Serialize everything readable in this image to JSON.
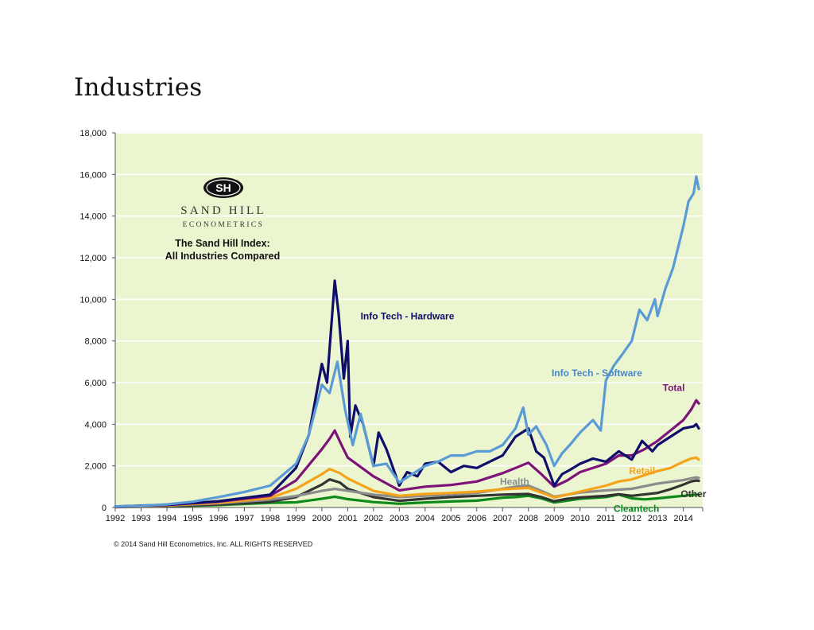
{
  "page": {
    "title": "Industries",
    "copyright": "© 2014 Sand Hill Econometrics, Inc. ALL RIGHTS RESERVED"
  },
  "logo": {
    "monogram": "SH",
    "line1": "SAND HILL",
    "line2": "ECONOMETRICS"
  },
  "chart_data": {
    "type": "line",
    "title": "The Sand Hill Index:",
    "subtitle": "All Industries Compared",
    "xlabel": "",
    "ylabel": "",
    "xlim": [
      1992,
      2014.75
    ],
    "ylim": [
      0,
      18000
    ],
    "yticks": [
      0,
      2000,
      4000,
      6000,
      8000,
      10000,
      12000,
      14000,
      16000,
      18000
    ],
    "ytick_labels": [
      "0",
      "2,000",
      "4,000",
      "6,000",
      "8,000",
      "10,000",
      "12,000",
      "14,000",
      "16,000",
      "18,000"
    ],
    "xticks": [
      1992,
      1993,
      1994,
      1995,
      1996,
      1997,
      1998,
      1999,
      2000,
      2001,
      2002,
      2003,
      2004,
      2005,
      2006,
      2007,
      2008,
      2009,
      2010,
      2011,
      2012,
      2013,
      2014
    ],
    "xtick_labels": [
      "1992",
      "1993",
      "1994",
      "1995",
      "1996",
      "1997",
      "1998",
      "1999",
      "2000",
      "2001",
      "2002",
      "2003",
      "2004",
      "2005",
      "2006",
      "2007",
      "2008",
      "2009",
      "2010",
      "2011",
      "2012",
      "2013",
      "2014"
    ],
    "grid": true,
    "plot_background": "#ebf5cf",
    "series": [
      {
        "name": "Cleantech",
        "color": "#0d8a1a",
        "points": [
          [
            1992,
            20
          ],
          [
            1994,
            60
          ],
          [
            1996,
            120
          ],
          [
            1998,
            220
          ],
          [
            1999,
            250
          ],
          [
            2000,
            420
          ],
          [
            2000.5,
            520
          ],
          [
            2001,
            400
          ],
          [
            2002,
            260
          ],
          [
            2003,
            180
          ],
          [
            2004,
            240
          ],
          [
            2005,
            290
          ],
          [
            2006,
            330
          ],
          [
            2007,
            470
          ],
          [
            2007.5,
            500
          ],
          [
            2008,
            560
          ],
          [
            2008.5,
            440
          ],
          [
            2009,
            240
          ],
          [
            2009.5,
            330
          ],
          [
            2010,
            420
          ],
          [
            2011,
            500
          ],
          [
            2011.5,
            620
          ],
          [
            2012,
            440
          ],
          [
            2012.5,
            390
          ],
          [
            2013,
            440
          ],
          [
            2013.5,
            500
          ],
          [
            2014,
            560
          ],
          [
            2014.5,
            620
          ],
          [
            2014.6,
            610
          ]
        ]
      },
      {
        "name": "Other",
        "color": "#333333",
        "points": [
          [
            1992,
            20
          ],
          [
            1994,
            60
          ],
          [
            1996,
            150
          ],
          [
            1998,
            280
          ],
          [
            1999,
            500
          ],
          [
            2000,
            1100
          ],
          [
            2000.3,
            1350
          ],
          [
            2000.7,
            1200
          ],
          [
            2001,
            900
          ],
          [
            2002,
            500
          ],
          [
            2003,
            320
          ],
          [
            2004,
            420
          ],
          [
            2005,
            500
          ],
          [
            2006,
            560
          ],
          [
            2007,
            620
          ],
          [
            2008,
            650
          ],
          [
            2008.5,
            500
          ],
          [
            2009,
            300
          ],
          [
            2009.5,
            420
          ],
          [
            2010,
            480
          ],
          [
            2011,
            560
          ],
          [
            2011.5,
            640
          ],
          [
            2012,
            560
          ],
          [
            2013,
            700
          ],
          [
            2013.5,
            880
          ],
          [
            2014,
            1100
          ],
          [
            2014.3,
            1250
          ],
          [
            2014.5,
            1300
          ],
          [
            2014.6,
            1280
          ]
        ]
      },
      {
        "name": "Health",
        "color": "#8c8c8c",
        "points": [
          [
            1992,
            30
          ],
          [
            1994,
            90
          ],
          [
            1996,
            200
          ],
          [
            1998,
            380
          ],
          [
            1999,
            550
          ],
          [
            2000,
            800
          ],
          [
            2000.5,
            900
          ],
          [
            2001,
            800
          ],
          [
            2002,
            620
          ],
          [
            2003,
            500
          ],
          [
            2004,
            560
          ],
          [
            2005,
            620
          ],
          [
            2006,
            700
          ],
          [
            2007,
            900
          ],
          [
            2007.5,
            1000
          ],
          [
            2008,
            1050
          ],
          [
            2008.5,
            800
          ],
          [
            2009,
            520
          ],
          [
            2009.5,
            620
          ],
          [
            2010,
            720
          ],
          [
            2011,
            820
          ],
          [
            2012,
            900
          ],
          [
            2013,
            1150
          ],
          [
            2014,
            1320
          ],
          [
            2014.5,
            1450
          ],
          [
            2014.6,
            1420
          ]
        ]
      },
      {
        "name": "Retail",
        "color": "#f5a31a",
        "points": [
          [
            1992,
            30
          ],
          [
            1994,
            100
          ],
          [
            1996,
            230
          ],
          [
            1998,
            460
          ],
          [
            1999,
            900
          ],
          [
            2000,
            1600
          ],
          [
            2000.3,
            1850
          ],
          [
            2000.7,
            1650
          ],
          [
            2001,
            1400
          ],
          [
            2002,
            800
          ],
          [
            2003,
            560
          ],
          [
            2004,
            650
          ],
          [
            2005,
            700
          ],
          [
            2006,
            760
          ],
          [
            2007,
            880
          ],
          [
            2008,
            940
          ],
          [
            2008.5,
            720
          ],
          [
            2009,
            480
          ],
          [
            2009.5,
            620
          ],
          [
            2010,
            760
          ],
          [
            2011,
            1050
          ],
          [
            2011.5,
            1250
          ],
          [
            2012,
            1350
          ],
          [
            2012.5,
            1550
          ],
          [
            2013,
            1750
          ],
          [
            2013.5,
            1900
          ],
          [
            2014,
            2200
          ],
          [
            2014.3,
            2350
          ],
          [
            2014.5,
            2400
          ],
          [
            2014.6,
            2300
          ]
        ]
      },
      {
        "name": "Total",
        "color": "#7d1378",
        "points": [
          [
            1992,
            40
          ],
          [
            1994,
            120
          ],
          [
            1996,
            280
          ],
          [
            1998,
            560
          ],
          [
            1999,
            1300
          ],
          [
            2000,
            2800
          ],
          [
            2000.3,
            3300
          ],
          [
            2000.5,
            3700
          ],
          [
            2000.8,
            2900
          ],
          [
            2001,
            2400
          ],
          [
            2002,
            1500
          ],
          [
            2003,
            820
          ],
          [
            2004,
            1000
          ],
          [
            2005,
            1080
          ],
          [
            2006,
            1250
          ],
          [
            2007,
            1650
          ],
          [
            2007.5,
            1900
          ],
          [
            2008,
            2150
          ],
          [
            2008.5,
            1600
          ],
          [
            2009,
            1000
          ],
          [
            2009.5,
            1300
          ],
          [
            2010,
            1700
          ],
          [
            2011,
            2100
          ],
          [
            2011.5,
            2500
          ],
          [
            2012,
            2500
          ],
          [
            2012.5,
            2800
          ],
          [
            2013,
            3200
          ],
          [
            2013.5,
            3700
          ],
          [
            2014,
            4200
          ],
          [
            2014.3,
            4700
          ],
          [
            2014.5,
            5150
          ],
          [
            2014.6,
            5000
          ]
        ]
      },
      {
        "name": "Info Tech - Hardware",
        "color": "#0f0f6b",
        "points": [
          [
            1992,
            50
          ],
          [
            1994,
            130
          ],
          [
            1996,
            300
          ],
          [
            1998,
            620
          ],
          [
            1999,
            1900
          ],
          [
            1999.5,
            3500
          ],
          [
            2000,
            6900
          ],
          [
            2000.2,
            6000
          ],
          [
            2000.5,
            10900
          ],
          [
            2000.65,
            9300
          ],
          [
            2000.85,
            6200
          ],
          [
            2001,
            8000
          ],
          [
            2001.1,
            3400
          ],
          [
            2001.3,
            4900
          ],
          [
            2001.6,
            4000
          ],
          [
            2002,
            2000
          ],
          [
            2002.2,
            3600
          ],
          [
            2002.5,
            2800
          ],
          [
            2003,
            1050
          ],
          [
            2003.3,
            1700
          ],
          [
            2003.7,
            1500
          ],
          [
            2004,
            2100
          ],
          [
            2004.5,
            2200
          ],
          [
            2005,
            1700
          ],
          [
            2005.5,
            2000
          ],
          [
            2006,
            1900
          ],
          [
            2006.5,
            2200
          ],
          [
            2007,
            2500
          ],
          [
            2007.5,
            3400
          ],
          [
            2008,
            3800
          ],
          [
            2008.3,
            2700
          ],
          [
            2008.6,
            2400
          ],
          [
            2009,
            1050
          ],
          [
            2009.3,
            1600
          ],
          [
            2009.6,
            1800
          ],
          [
            2010,
            2100
          ],
          [
            2010.5,
            2350
          ],
          [
            2011,
            2200
          ],
          [
            2011.5,
            2700
          ],
          [
            2012,
            2300
          ],
          [
            2012.4,
            3200
          ],
          [
            2012.8,
            2700
          ],
          [
            2013,
            3000
          ],
          [
            2013.5,
            3400
          ],
          [
            2014,
            3800
          ],
          [
            2014.4,
            3900
          ],
          [
            2014.5,
            4000
          ],
          [
            2014.6,
            3800
          ]
        ]
      },
      {
        "name": "Info Tech - Software",
        "color": "#5b9bd5",
        "points": [
          [
            1992,
            50
          ],
          [
            1993,
            80
          ],
          [
            1994,
            150
          ],
          [
            1995,
            280
          ],
          [
            1996,
            500
          ],
          [
            1997,
            750
          ],
          [
            1998,
            1050
          ],
          [
            1999,
            2100
          ],
          [
            1999.5,
            3500
          ],
          [
            2000,
            5900
          ],
          [
            2000.3,
            5500
          ],
          [
            2000.6,
            7000
          ],
          [
            2000.9,
            4700
          ],
          [
            2001.2,
            3000
          ],
          [
            2001.5,
            4500
          ],
          [
            2002,
            2000
          ],
          [
            2002.5,
            2100
          ],
          [
            2003,
            1200
          ],
          [
            2003.5,
            1600
          ],
          [
            2004,
            2000
          ],
          [
            2004.5,
            2200
          ],
          [
            2005,
            2500
          ],
          [
            2005.5,
            2500
          ],
          [
            2006,
            2700
          ],
          [
            2006.5,
            2700
          ],
          [
            2007,
            3000
          ],
          [
            2007.5,
            3800
          ],
          [
            2007.8,
            4800
          ],
          [
            2008,
            3500
          ],
          [
            2008.3,
            3900
          ],
          [
            2008.7,
            3000
          ],
          [
            2009,
            2000
          ],
          [
            2009.3,
            2600
          ],
          [
            2009.6,
            3000
          ],
          [
            2010,
            3600
          ],
          [
            2010.5,
            4200
          ],
          [
            2010.8,
            3700
          ],
          [
            2011,
            6100
          ],
          [
            2011.3,
            6800
          ],
          [
            2011.6,
            7300
          ],
          [
            2012,
            8000
          ],
          [
            2012.3,
            9500
          ],
          [
            2012.6,
            9000
          ],
          [
            2012.9,
            10000
          ],
          [
            2013,
            9200
          ],
          [
            2013.3,
            10500
          ],
          [
            2013.6,
            11500
          ],
          [
            2014,
            13500
          ],
          [
            2014.2,
            14700
          ],
          [
            2014.4,
            15100
          ],
          [
            2014.5,
            15900
          ],
          [
            2014.6,
            15300
          ]
        ]
      }
    ],
    "annotations": [
      {
        "text": "Info Tech - Hardware",
        "series": "Info Tech - Hardware",
        "color": "#0f0f6b",
        "at": [
          2001.5,
          9200
        ]
      },
      {
        "text": "Info Tech - Software",
        "series": "Info Tech - Software",
        "color": "#4a86c8",
        "at": [
          2008.9,
          6450
        ]
      },
      {
        "text": "Total",
        "series": "Total",
        "color": "#7d1378",
        "at": [
          2013.2,
          5750
        ]
      },
      {
        "text": "Retail",
        "series": "Retail",
        "color": "#f5a31a",
        "at": [
          2011.9,
          1750
        ]
      },
      {
        "text": "Health",
        "series": "Health",
        "color": "#8c8c8c",
        "at": [
          2006.9,
          1250
        ]
      },
      {
        "text": "Other",
        "series": "Other",
        "color": "#333333",
        "at": [
          2013.9,
          650
        ]
      },
      {
        "text": "Cleantech",
        "series": "Cleantech",
        "color": "#0d8a1a",
        "at": [
          2011.3,
          -50
        ]
      }
    ]
  }
}
